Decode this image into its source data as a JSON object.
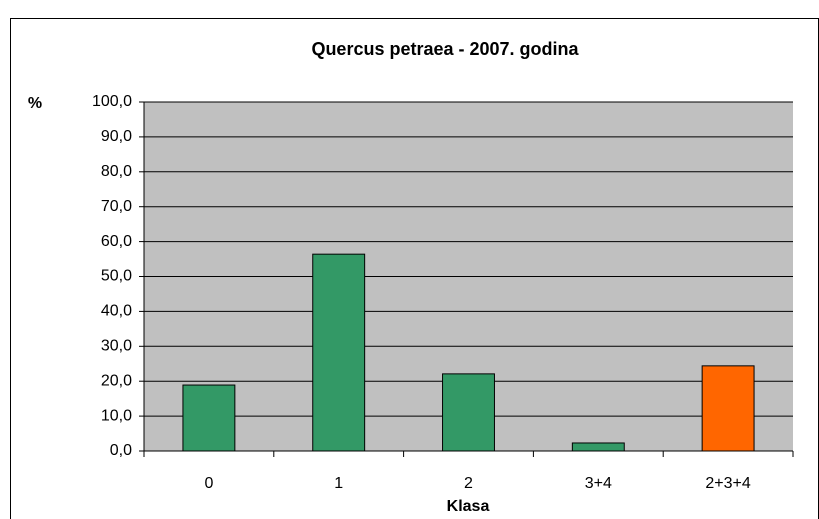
{
  "chart_data": {
    "type": "bar",
    "title": "Quercus petraea - 2007. godina",
    "y_label": "%",
    "x_label": "Klasa",
    "categories": [
      "0",
      "1",
      "2",
      "3+4",
      "2+3+4"
    ],
    "values": [
      18.9,
      56.4,
      22.1,
      2.3,
      24.4
    ],
    "colors": [
      "#339966",
      "#339966",
      "#339966",
      "#339966",
      "#ff6600"
    ],
    "ylim": [
      0,
      100
    ],
    "yticks": [
      {
        "value": 0,
        "label": "0,0"
      },
      {
        "value": 10,
        "label": "10,0"
      },
      {
        "value": 20,
        "label": "20,0"
      },
      {
        "value": 30,
        "label": "30,0"
      },
      {
        "value": 40,
        "label": "40,0"
      },
      {
        "value": 50,
        "label": "50,0"
      },
      {
        "value": 60,
        "label": "60,0"
      },
      {
        "value": 70,
        "label": "70,0"
      },
      {
        "value": 80,
        "label": "80,0"
      },
      {
        "value": 90,
        "label": "90,0"
      },
      {
        "value": 100,
        "label": "100,0"
      }
    ],
    "grid": true
  }
}
